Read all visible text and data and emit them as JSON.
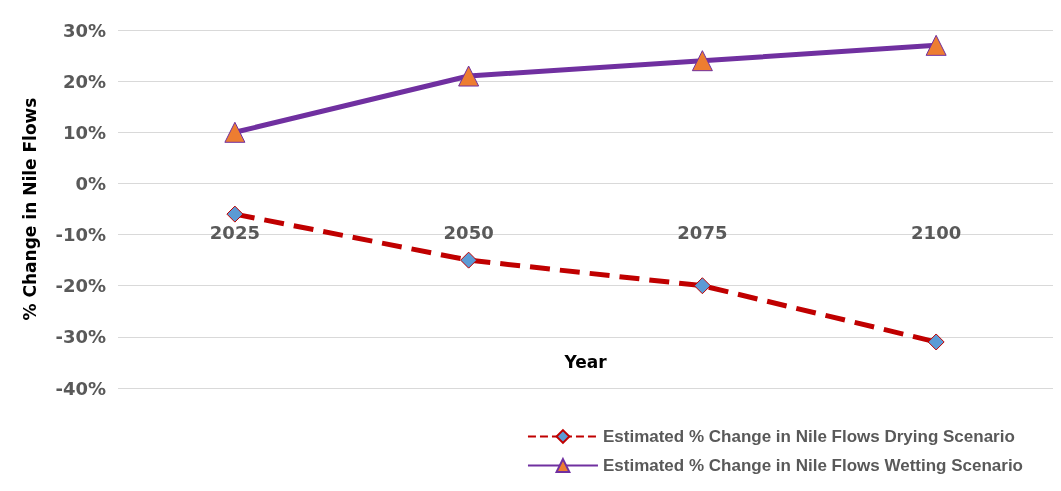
{
  "chart_data": {
    "type": "line",
    "xlabel": "Year",
    "ylabel": "% Change in Nile Flows",
    "categories": [
      "2025",
      "2050",
      "2075",
      "2100"
    ],
    "series": [
      {
        "name": "Estimated % Change in Nile Flows Drying Scenario",
        "color": "#c00000",
        "line_style": "dashed",
        "marker": "diamond",
        "colors": [
          "#5b9bd5",
          "#5b9bd5",
          "#5b9bd5",
          "#5b9bd5"
        ],
        "values": [
          -6,
          -15,
          -20,
          -31
        ]
      },
      {
        "name": "Estimated % Change in Nile Flows Wetting Scenario",
        "color": "#7030a0",
        "line_style": "solid",
        "marker": "triangle",
        "colors": [
          "#ed7d31",
          "#ed7d31",
          "#ed7d31",
          "#ed7d31"
        ],
        "values": [
          10,
          21,
          24,
          27
        ]
      }
    ],
    "ylim": [
      -40,
      30
    ],
    "yticks": [
      {
        "value": -40,
        "label": "-40%"
      },
      {
        "value": -30,
        "label": "-30%"
      },
      {
        "value": -20,
        "label": "-20%"
      },
      {
        "value": -10,
        "label": "-10%"
      },
      {
        "value": 0,
        "label": "0%"
      },
      {
        "value": 10,
        "label": "10%"
      },
      {
        "value": 20,
        "label": "20%"
      },
      {
        "value": 30,
        "label": "30%"
      }
    ],
    "grid": "y",
    "legend": "bottom right"
  }
}
